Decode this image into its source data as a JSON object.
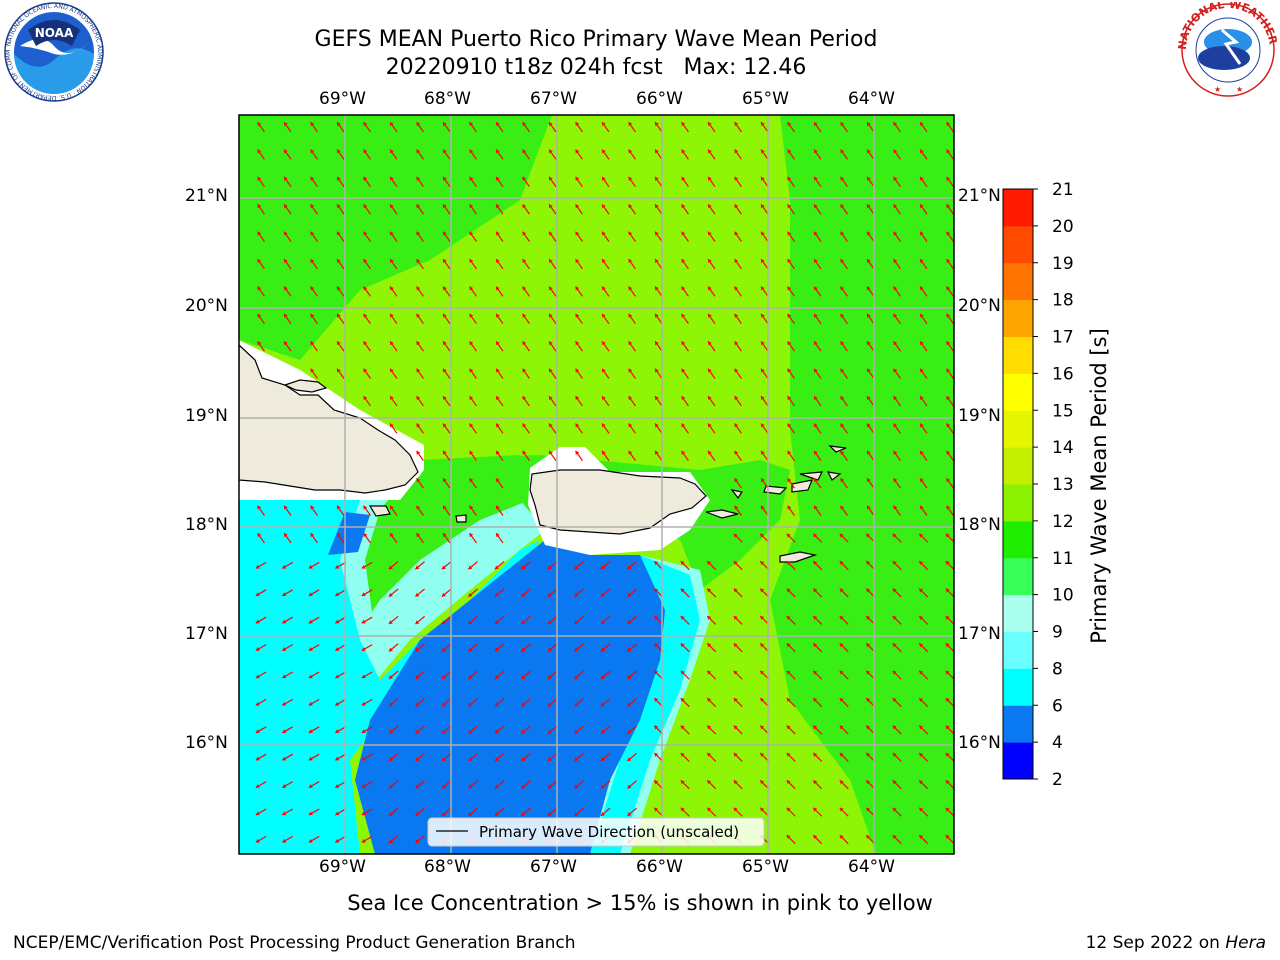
{
  "title": {
    "line1": "GEFS MEAN Puerto Rico Primary Wave Mean Period",
    "line2": "20220910 t18z 024h fcst   Max: 12.46"
  },
  "logos": {
    "noaa": {
      "text": "NOAA",
      "ring_text": "NATIONAL OCEANIC AND ATMOSPHERIC ADMINISTRATION · U.S. DEPARTMENT OF COMMERCE"
    },
    "nws": {
      "ring_text": "NATIONAL WEATHER SERVICE"
    }
  },
  "axes": {
    "lon_labels": [
      "69°W",
      "68°W",
      "67°W",
      "66°W",
      "65°W",
      "64°W"
    ],
    "lat_labels": [
      "21°N",
      "20°N",
      "19°N",
      "18°N",
      "17°N",
      "16°N"
    ]
  },
  "legend": {
    "label": "Primary Wave Direction (unscaled)"
  },
  "colorbar": {
    "label": "Primary Wave Mean Period [s]",
    "ticks": [
      "21",
      "20",
      "19",
      "18",
      "17",
      "16",
      "15",
      "14",
      "13",
      "12",
      "11",
      "10",
      "9",
      "8",
      "6",
      "4",
      "2"
    ],
    "colors": [
      "#0000ff",
      "#0a78f0",
      "#00ffff",
      "#69ffff",
      "#aaffee",
      "#39ff5a",
      "#20ee00",
      "#8bf200",
      "#c4f000",
      "#e6f500",
      "#ffff00",
      "#ffdd00",
      "#ffa500",
      "#ff7300",
      "#ff4a00",
      "#ff1a00"
    ]
  },
  "map": {
    "extent": {
      "lon": [
        -70.0,
        -63.25
      ],
      "lat": [
        15.0,
        21.75
      ]
    },
    "colors": {
      "land": "#efebdc",
      "mask": "#ffffff",
      "green": "#39ee15",
      "yellow_green": "#8ef506",
      "cyan": "#00ffff",
      "light_cyan": "#90ffef",
      "blue": "#0a78f0",
      "arrow": "#ff0000",
      "grid": "#b0b0b0"
    }
  },
  "footer": {
    "note": "Sea Ice Concentration > 15% is shown in pink to yellow",
    "left": "NCEP/EMC/Verification Post Processing Product Generation Branch",
    "right_prefix": "12 Sep 2022 on ",
    "right_host": "Hera"
  }
}
